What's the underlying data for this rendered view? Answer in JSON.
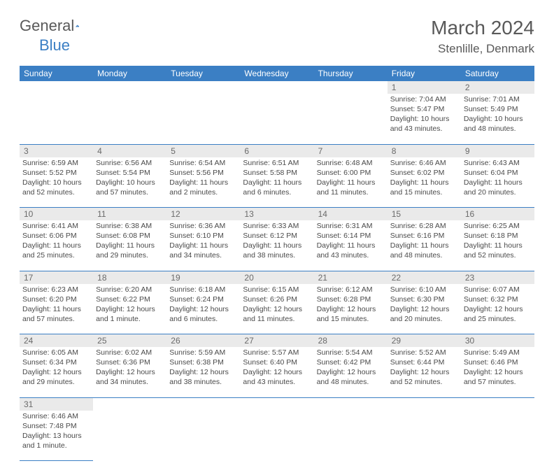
{
  "logo": {
    "word1": "General",
    "word2": "Blue"
  },
  "title": "March 2024",
  "location": "Stenlille, Denmark",
  "weekdays": [
    "Sunday",
    "Monday",
    "Tuesday",
    "Wednesday",
    "Thursday",
    "Friday",
    "Saturday"
  ],
  "colors": {
    "header_bg": "#3b7fc4",
    "header_text": "#ffffff",
    "daynum_bg": "#eaeaea",
    "row_border": "#3b7fc4",
    "body_text": "#4a4a4a",
    "title_text": "#595959"
  },
  "weeks": [
    [
      null,
      null,
      null,
      null,
      null,
      {
        "n": "1",
        "sr": "Sunrise: 7:04 AM",
        "ss": "Sunset: 5:47 PM",
        "d1": "Daylight: 10 hours",
        "d2": "and 43 minutes."
      },
      {
        "n": "2",
        "sr": "Sunrise: 7:01 AM",
        "ss": "Sunset: 5:49 PM",
        "d1": "Daylight: 10 hours",
        "d2": "and 48 minutes."
      }
    ],
    [
      {
        "n": "3",
        "sr": "Sunrise: 6:59 AM",
        "ss": "Sunset: 5:52 PM",
        "d1": "Daylight: 10 hours",
        "d2": "and 52 minutes."
      },
      {
        "n": "4",
        "sr": "Sunrise: 6:56 AM",
        "ss": "Sunset: 5:54 PM",
        "d1": "Daylight: 10 hours",
        "d2": "and 57 minutes."
      },
      {
        "n": "5",
        "sr": "Sunrise: 6:54 AM",
        "ss": "Sunset: 5:56 PM",
        "d1": "Daylight: 11 hours",
        "d2": "and 2 minutes."
      },
      {
        "n": "6",
        "sr": "Sunrise: 6:51 AM",
        "ss": "Sunset: 5:58 PM",
        "d1": "Daylight: 11 hours",
        "d2": "and 6 minutes."
      },
      {
        "n": "7",
        "sr": "Sunrise: 6:48 AM",
        "ss": "Sunset: 6:00 PM",
        "d1": "Daylight: 11 hours",
        "d2": "and 11 minutes."
      },
      {
        "n": "8",
        "sr": "Sunrise: 6:46 AM",
        "ss": "Sunset: 6:02 PM",
        "d1": "Daylight: 11 hours",
        "d2": "and 15 minutes."
      },
      {
        "n": "9",
        "sr": "Sunrise: 6:43 AM",
        "ss": "Sunset: 6:04 PM",
        "d1": "Daylight: 11 hours",
        "d2": "and 20 minutes."
      }
    ],
    [
      {
        "n": "10",
        "sr": "Sunrise: 6:41 AM",
        "ss": "Sunset: 6:06 PM",
        "d1": "Daylight: 11 hours",
        "d2": "and 25 minutes."
      },
      {
        "n": "11",
        "sr": "Sunrise: 6:38 AM",
        "ss": "Sunset: 6:08 PM",
        "d1": "Daylight: 11 hours",
        "d2": "and 29 minutes."
      },
      {
        "n": "12",
        "sr": "Sunrise: 6:36 AM",
        "ss": "Sunset: 6:10 PM",
        "d1": "Daylight: 11 hours",
        "d2": "and 34 minutes."
      },
      {
        "n": "13",
        "sr": "Sunrise: 6:33 AM",
        "ss": "Sunset: 6:12 PM",
        "d1": "Daylight: 11 hours",
        "d2": "and 38 minutes."
      },
      {
        "n": "14",
        "sr": "Sunrise: 6:31 AM",
        "ss": "Sunset: 6:14 PM",
        "d1": "Daylight: 11 hours",
        "d2": "and 43 minutes."
      },
      {
        "n": "15",
        "sr": "Sunrise: 6:28 AM",
        "ss": "Sunset: 6:16 PM",
        "d1": "Daylight: 11 hours",
        "d2": "and 48 minutes."
      },
      {
        "n": "16",
        "sr": "Sunrise: 6:25 AM",
        "ss": "Sunset: 6:18 PM",
        "d1": "Daylight: 11 hours",
        "d2": "and 52 minutes."
      }
    ],
    [
      {
        "n": "17",
        "sr": "Sunrise: 6:23 AM",
        "ss": "Sunset: 6:20 PM",
        "d1": "Daylight: 11 hours",
        "d2": "and 57 minutes."
      },
      {
        "n": "18",
        "sr": "Sunrise: 6:20 AM",
        "ss": "Sunset: 6:22 PM",
        "d1": "Daylight: 12 hours",
        "d2": "and 1 minute."
      },
      {
        "n": "19",
        "sr": "Sunrise: 6:18 AM",
        "ss": "Sunset: 6:24 PM",
        "d1": "Daylight: 12 hours",
        "d2": "and 6 minutes."
      },
      {
        "n": "20",
        "sr": "Sunrise: 6:15 AM",
        "ss": "Sunset: 6:26 PM",
        "d1": "Daylight: 12 hours",
        "d2": "and 11 minutes."
      },
      {
        "n": "21",
        "sr": "Sunrise: 6:12 AM",
        "ss": "Sunset: 6:28 PM",
        "d1": "Daylight: 12 hours",
        "d2": "and 15 minutes."
      },
      {
        "n": "22",
        "sr": "Sunrise: 6:10 AM",
        "ss": "Sunset: 6:30 PM",
        "d1": "Daylight: 12 hours",
        "d2": "and 20 minutes."
      },
      {
        "n": "23",
        "sr": "Sunrise: 6:07 AM",
        "ss": "Sunset: 6:32 PM",
        "d1": "Daylight: 12 hours",
        "d2": "and 25 minutes."
      }
    ],
    [
      {
        "n": "24",
        "sr": "Sunrise: 6:05 AM",
        "ss": "Sunset: 6:34 PM",
        "d1": "Daylight: 12 hours",
        "d2": "and 29 minutes."
      },
      {
        "n": "25",
        "sr": "Sunrise: 6:02 AM",
        "ss": "Sunset: 6:36 PM",
        "d1": "Daylight: 12 hours",
        "d2": "and 34 minutes."
      },
      {
        "n": "26",
        "sr": "Sunrise: 5:59 AM",
        "ss": "Sunset: 6:38 PM",
        "d1": "Daylight: 12 hours",
        "d2": "and 38 minutes."
      },
      {
        "n": "27",
        "sr": "Sunrise: 5:57 AM",
        "ss": "Sunset: 6:40 PM",
        "d1": "Daylight: 12 hours",
        "d2": "and 43 minutes."
      },
      {
        "n": "28",
        "sr": "Sunrise: 5:54 AM",
        "ss": "Sunset: 6:42 PM",
        "d1": "Daylight: 12 hours",
        "d2": "and 48 minutes."
      },
      {
        "n": "29",
        "sr": "Sunrise: 5:52 AM",
        "ss": "Sunset: 6:44 PM",
        "d1": "Daylight: 12 hours",
        "d2": "and 52 minutes."
      },
      {
        "n": "30",
        "sr": "Sunrise: 5:49 AM",
        "ss": "Sunset: 6:46 PM",
        "d1": "Daylight: 12 hours",
        "d2": "and 57 minutes."
      }
    ],
    [
      {
        "n": "31",
        "sr": "Sunrise: 6:46 AM",
        "ss": "Sunset: 7:48 PM",
        "d1": "Daylight: 13 hours",
        "d2": "and 1 minute."
      },
      null,
      null,
      null,
      null,
      null,
      null
    ]
  ]
}
